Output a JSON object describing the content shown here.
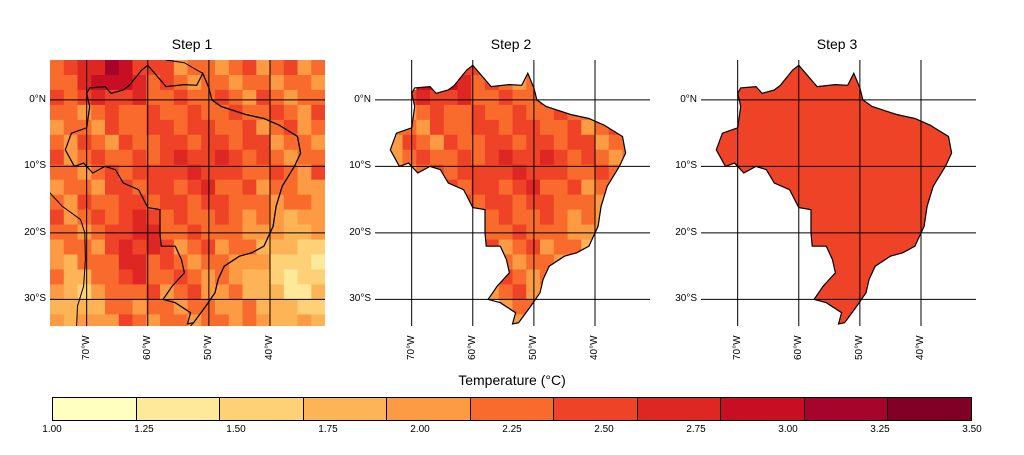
{
  "panels": [
    {
      "title": "Step 1"
    },
    {
      "title": "Step 2"
    },
    {
      "title": "Step 3"
    }
  ],
  "lat_labels": [
    "0°N",
    "10°S",
    "20°S",
    "30°S"
  ],
  "lon_labels": [
    "70°W",
    "60°W",
    "50°W",
    "40°W"
  ],
  "colorbar": {
    "title": "Temperature (°C)",
    "ticks": [
      "1.00",
      "1.25",
      "1.50",
      "1.75",
      "2.00",
      "2.25",
      "2.50",
      "2.75",
      "3.00",
      "3.25",
      "3.50"
    ],
    "colors": [
      "#ffffc0",
      "#fee99a",
      "#fed176",
      "#fdb457",
      "#fd9a44",
      "#f86b2c",
      "#ef4328",
      "#de2623",
      "#c80e23",
      "#a6042a",
      "#800026"
    ]
  },
  "chart_data": {
    "type": "heatmap",
    "region": "Brazil / South America",
    "variable": "Temperature (°C)",
    "scale_min": 1.0,
    "scale_max": 3.5,
    "bin_width": 0.25,
    "lat_range": [
      -34,
      6
    ],
    "lon_range": [
      -76,
      -31
    ],
    "panels": [
      {
        "title": "Step 1",
        "extent": "continental grid",
        "typical_value_range": [
          1.25,
          3.5
        ]
      },
      {
        "title": "Step 2",
        "extent": "Brazil masked grid",
        "typical_value_range": [
          1.75,
          3.5
        ]
      },
      {
        "title": "Step 3",
        "extent": "Brazil national mean",
        "value": 2.6
      }
    ]
  }
}
